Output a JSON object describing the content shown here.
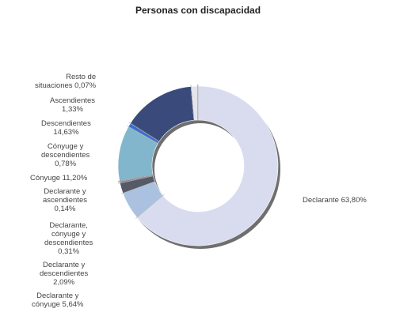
{
  "chart_data": {
    "type": "pie",
    "title": "Personas con discapacidad",
    "slices": [
      {
        "label": "Declarante 63,80%",
        "value": 63.8,
        "color": "#d8dcee"
      },
      {
        "label": "Declarante y\ncónyuge 5,64%",
        "value": 5.64,
        "color": "#aac2e0"
      },
      {
        "label": "Declarante y\ndescendientes\n2,09%",
        "value": 2.09,
        "color": "#555a66"
      },
      {
        "label": "Declarante,\ncónyuge y\ndescendientes\n0,31%",
        "value": 0.31,
        "color": "#7d7f8a"
      },
      {
        "label": "Declarante y\nascendientes\n0,14%",
        "value": 0.14,
        "color": "#6b6e78"
      },
      {
        "label": "Cónyuge 11,20%",
        "value": 11.2,
        "color": "#82b6cc"
      },
      {
        "label": "Cónyuge y\ndescendientes\n0,78%",
        "value": 0.78,
        "color": "#3a6fd0"
      },
      {
        "label": "Descendientes\n14,63%",
        "value": 14.63,
        "color": "#3a4a7a"
      },
      {
        "label": "Ascendientes\n1,33%",
        "value": 1.33,
        "color": "#e4e4ec"
      },
      {
        "label": "Resto de\nsituaciones 0,07%",
        "value": 0.07,
        "color": "#9aa0b0"
      }
    ]
  }
}
